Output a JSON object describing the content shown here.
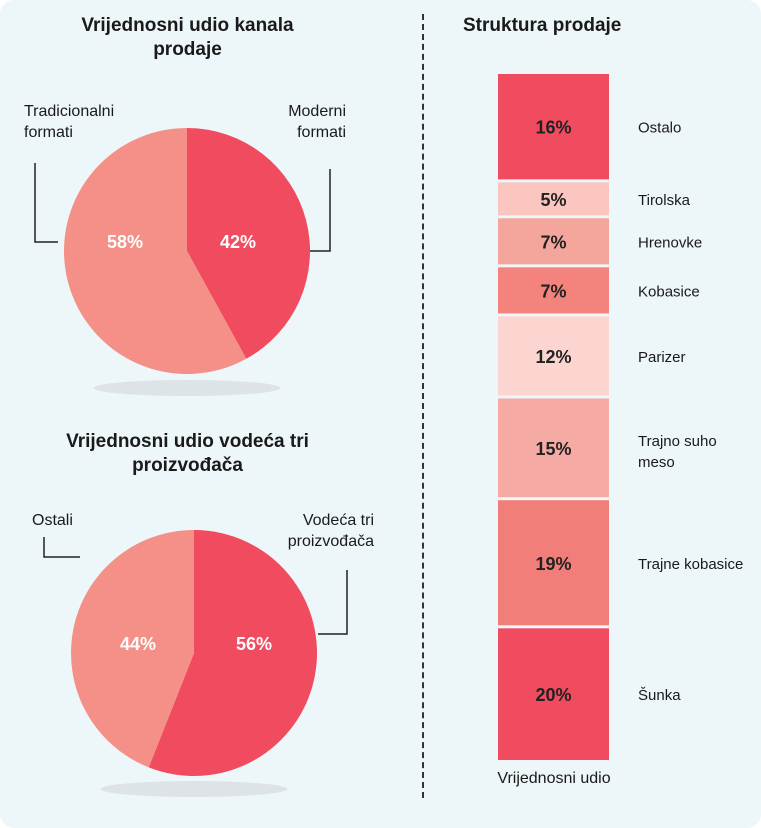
{
  "colors": {
    "red": "#f04b5e",
    "salmon": "#f49088",
    "light_pink": "#fbc6c0",
    "pink": "#f5a69c",
    "coral": "#f3837c",
    "very_light": "#fcd5d0",
    "pale_pink": "#f5aaa4",
    "mid_pink": "#f27e79",
    "shadow": "#dde3e6"
  },
  "chart_data": [
    {
      "type": "pie",
      "title": "Vrijednosni udio kanala prodaje",
      "slices": [
        {
          "label": "Moderni formati",
          "value": 42,
          "text": "42%",
          "color": "#f04b5e"
        },
        {
          "label": "Tradicionalni formati",
          "value": 58,
          "text": "58%",
          "color": "#f49088"
        }
      ]
    },
    {
      "type": "pie",
      "title": "Vrijednosni udio vodeća tri proizvođača",
      "slices": [
        {
          "label": "Vodeća tri proizvođača",
          "value": 56,
          "text": "56%",
          "color": "#f04b5e"
        },
        {
          "label": "Ostali",
          "value": 44,
          "text": "44%",
          "color": "#f49088"
        }
      ]
    },
    {
      "type": "bar",
      "stacked": true,
      "title": "Struktura prodaje",
      "xlabel": "Vrijednosni udio",
      "segments": [
        {
          "label": "Ostalo",
          "value": 16,
          "text": "16%",
          "color": "#f04b5e"
        },
        {
          "label": "Tirolska",
          "value": 5,
          "text": "5%",
          "color": "#fbc6c0"
        },
        {
          "label": "Hrenovke",
          "value": 7,
          "text": "7%",
          "color": "#f5a69c"
        },
        {
          "label": "Kobasice",
          "value": 7,
          "text": "7%",
          "color": "#f3837c"
        },
        {
          "label": "Parizer",
          "value": 12,
          "text": "12%",
          "color": "#fcd5d0"
        },
        {
          "label": "Trajno suho meso",
          "value": 15,
          "text": "15%",
          "color": "#f5aaa4"
        },
        {
          "label": "Trajne kobasice",
          "value": 19,
          "text": "19%",
          "color": "#f27e79"
        },
        {
          "label": "Šunka",
          "value": 20,
          "text": "20%",
          "color": "#f04b5e"
        }
      ]
    }
  ],
  "labels": {
    "pie1_title_line1": "Vrijednosni udio kanala",
    "pie1_title_line2": "prodaje",
    "pie1_left_line1": "Tradicionalni",
    "pie1_left_line2": "formati",
    "pie1_right_line1": "Moderni",
    "pie1_right_line2": "formati",
    "pie2_title_line1": "Vrijednosni udio vodeća tri",
    "pie2_title_line2": "proizvođača",
    "pie2_left": "Ostali",
    "pie2_right_line1": "Vodeća tri",
    "pie2_right_line2": "proizvođača",
    "bar_title": "Struktura prodaje",
    "bar_xlabel": "Vrijednosni udio",
    "seg_label_trajno_line1": "Trajno suho",
    "seg_label_trajno_line2": "meso"
  }
}
